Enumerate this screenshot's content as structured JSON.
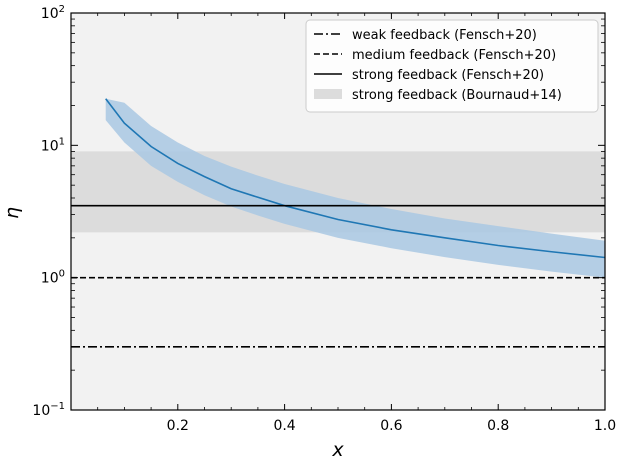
{
  "chart_data": {
    "type": "line",
    "xlabel": "x",
    "ylabel": "η",
    "xlim": [
      0.0,
      1.0
    ],
    "ylim": [
      0.1,
      100
    ],
    "yscale": "log",
    "x_ticks": [
      {
        "value": 0.2,
        "label": "0.2"
      },
      {
        "value": 0.4,
        "label": "0.4"
      },
      {
        "value": 0.6,
        "label": "0.6"
      },
      {
        "value": 0.8,
        "label": "0.8"
      },
      {
        "value": 1.0,
        "label": "1.0"
      }
    ],
    "y_ticks": [
      {
        "value": 0.1,
        "base": "10",
        "exp": "−1"
      },
      {
        "value": 1,
        "base": "10",
        "exp": "0"
      },
      {
        "value": 10,
        "base": "10",
        "exp": "1"
      },
      {
        "value": 100,
        "base": "10",
        "exp": "2"
      }
    ],
    "grid": false,
    "legend_position": "top-right",
    "colors": {
      "plot_background": "#f2f2f2",
      "curve": "#1f77b4",
      "band": "#a9c8e3",
      "bournaud_band": "#dcdcdc",
      "reference_lines": "#000000"
    },
    "series": [
      {
        "name": "weak feedback (Fensch+20)",
        "kind": "hline",
        "style": "dash-dot",
        "y": 0.3
      },
      {
        "name": "medium feedback (Fensch+20)",
        "kind": "hline",
        "style": "dashed",
        "y": 1.0
      },
      {
        "name": "strong feedback (Fensch+20)",
        "kind": "hline",
        "style": "solid",
        "y": 3.5
      },
      {
        "name": "strong feedback (Bournaud+14)",
        "kind": "hband",
        "y_low": 2.2,
        "y_high": 9.0
      },
      {
        "kind": "curve_with_band",
        "x": [
          0.065,
          0.1,
          0.15,
          0.2,
          0.25,
          0.3,
          0.35,
          0.4,
          0.5,
          0.6,
          0.7,
          0.8,
          0.9,
          1.0
        ],
        "y": [
          22.5,
          14.7,
          9.8,
          7.3,
          5.8,
          4.7,
          4.05,
          3.5,
          2.75,
          2.3,
          2.0,
          1.75,
          1.57,
          1.42
        ],
        "y_low": [
          15.5,
          10.5,
          7.0,
          5.3,
          4.2,
          3.45,
          2.95,
          2.55,
          2.0,
          1.67,
          1.43,
          1.25,
          1.11,
          1.0
        ],
        "y_high": [
          22.5,
          21.0,
          14.0,
          10.5,
          8.3,
          6.9,
          5.9,
          5.1,
          4.0,
          3.3,
          2.8,
          2.45,
          2.15,
          1.9
        ]
      }
    ]
  }
}
